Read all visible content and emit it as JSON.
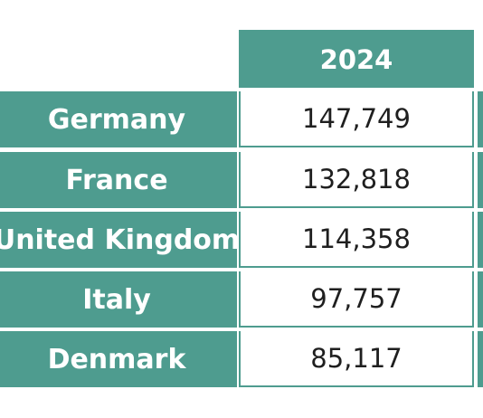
{
  "chart_data": {
    "type": "table",
    "columns": [
      "2024"
    ],
    "rows": [
      {
        "category": "Germany",
        "value": 147749,
        "display": "147,749"
      },
      {
        "category": "France",
        "value": 132818,
        "display": "132,818"
      },
      {
        "category": "United Kingdom",
        "value": 114358,
        "display": "114,358"
      },
      {
        "category": "Italy",
        "value": 97757,
        "display": "97,757"
      },
      {
        "category": "Denmark",
        "value": 85117,
        "display": "85,117"
      }
    ]
  },
  "colors": {
    "accent": "#4e9c8f",
    "header_text": "#ffffff",
    "value_text": "#1f1f1f"
  }
}
